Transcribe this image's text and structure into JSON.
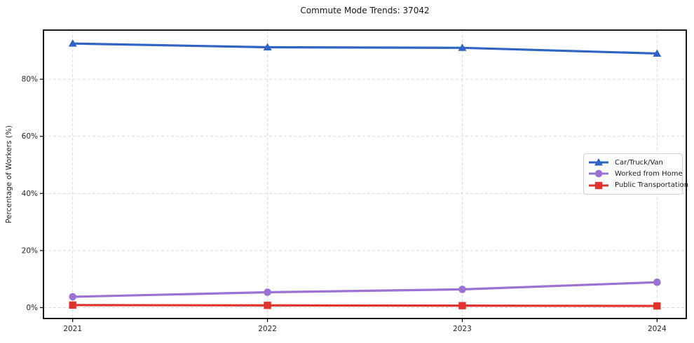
{
  "title": "Commute Mode Trends: 37042",
  "colors": {
    "background": "#ffffff",
    "grid": "#d8d8d8",
    "axis": "#000000",
    "text": "#262626",
    "blue": "#2f63c4",
    "purple": "#9b72d4",
    "red": "#e0332e"
  },
  "chart_data": {
    "type": "line",
    "title": "Commute Mode Trends: 37042",
    "xlabel": "",
    "ylabel": "Percentage of Workers (%)",
    "x": [
      2021,
      2022,
      2023,
      2024
    ],
    "x_tick_labels": [
      "2021",
      "2022",
      "2023",
      "2024"
    ],
    "y_ticks": [
      0,
      20,
      40,
      60,
      80
    ],
    "y_tick_labels": [
      "0%",
      "20%",
      "40%",
      "60%",
      "80%"
    ],
    "xlim": [
      2020.85,
      2024.15
    ],
    "ylim": [
      -3.8,
      97.2
    ],
    "grid": "dashed",
    "legend_position": "center-right",
    "series": [
      {
        "name": "Car/Truck/Van",
        "color": "#2f63c4",
        "marker": "triangle",
        "values": [
          92.5,
          91.2,
          91.0,
          89.0
        ]
      },
      {
        "name": "Worked from Home",
        "color": "#9b72d4",
        "marker": "circle",
        "values": [
          3.8,
          5.4,
          6.4,
          8.9
        ]
      },
      {
        "name": "Public Transportation",
        "color": "#e0332e",
        "marker": "square",
        "values": [
          0.9,
          0.8,
          0.7,
          0.6
        ]
      }
    ]
  }
}
